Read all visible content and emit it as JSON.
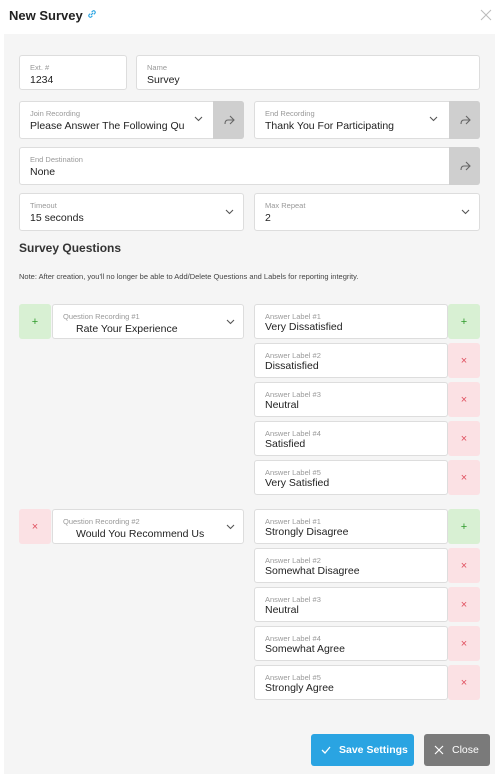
{
  "modal": {
    "title": "New Survey"
  },
  "ext": {
    "label": "Ext. #",
    "value": "1234"
  },
  "name": {
    "label": "Name",
    "value": "Survey"
  },
  "join_recording": {
    "label": "Join Recording",
    "value": "Please Answer The Following Qu"
  },
  "end_recording": {
    "label": "End Recording",
    "value": "Thank You For Participating"
  },
  "end_destination": {
    "label": "End Destination",
    "value": "None"
  },
  "timeout": {
    "label": "Timeout",
    "value": "15 seconds"
  },
  "max_repeat": {
    "label": "Max Repeat",
    "value": "2"
  },
  "survey_questions": {
    "title": "Survey Questions",
    "note": "Note: After creation, you'll no longer be able to Add/Delete Questions and Labels for reporting integrity.",
    "questions": [
      {
        "label": "Question Recording #1",
        "value": "Rate Your Experience",
        "action": "+",
        "answers": [
          {
            "label": "Answer Label #1",
            "value": "Very Dissatisfied",
            "action": "+"
          },
          {
            "label": "Answer Label #2",
            "value": "Dissatisfied",
            "action": "×"
          },
          {
            "label": "Answer Label #3",
            "value": "Neutral",
            "action": "×"
          },
          {
            "label": "Answer Label #4",
            "value": "Satisfied",
            "action": "×"
          },
          {
            "label": "Answer Label #5",
            "value": "Very Satisfied",
            "action": "×"
          }
        ]
      },
      {
        "label": "Question Recording #2",
        "value": "Would You Recommend Us",
        "action": "×",
        "answers": [
          {
            "label": "Answer Label #1",
            "value": "Strongly Disagree",
            "action": "+"
          },
          {
            "label": "Answer Label #2",
            "value": "Somewhat Disagree",
            "action": "×"
          },
          {
            "label": "Answer Label #3",
            "value": "Neutral",
            "action": "×"
          },
          {
            "label": "Answer Label #4",
            "value": "Somewhat Agree",
            "action": "×"
          },
          {
            "label": "Answer Label #5",
            "value": "Strongly Agree",
            "action": "×"
          }
        ]
      }
    ]
  },
  "footer": {
    "save_label": "Save Settings",
    "close_label": "Close"
  },
  "colors": {
    "save_button": "#2aa4e2",
    "close_button": "#7a7a7a",
    "add_bg": "#d8f0d3",
    "add_fg": "#2e9a2a",
    "remove_bg": "#fbe1e4",
    "remove_fg": "#e0505f"
  },
  "icons": {
    "title_link": "link-icon",
    "modal_close": "close-icon",
    "share": "share-icon",
    "dropdown": "chevron-down-icon",
    "save": "check-icon",
    "close": "close-icon"
  }
}
